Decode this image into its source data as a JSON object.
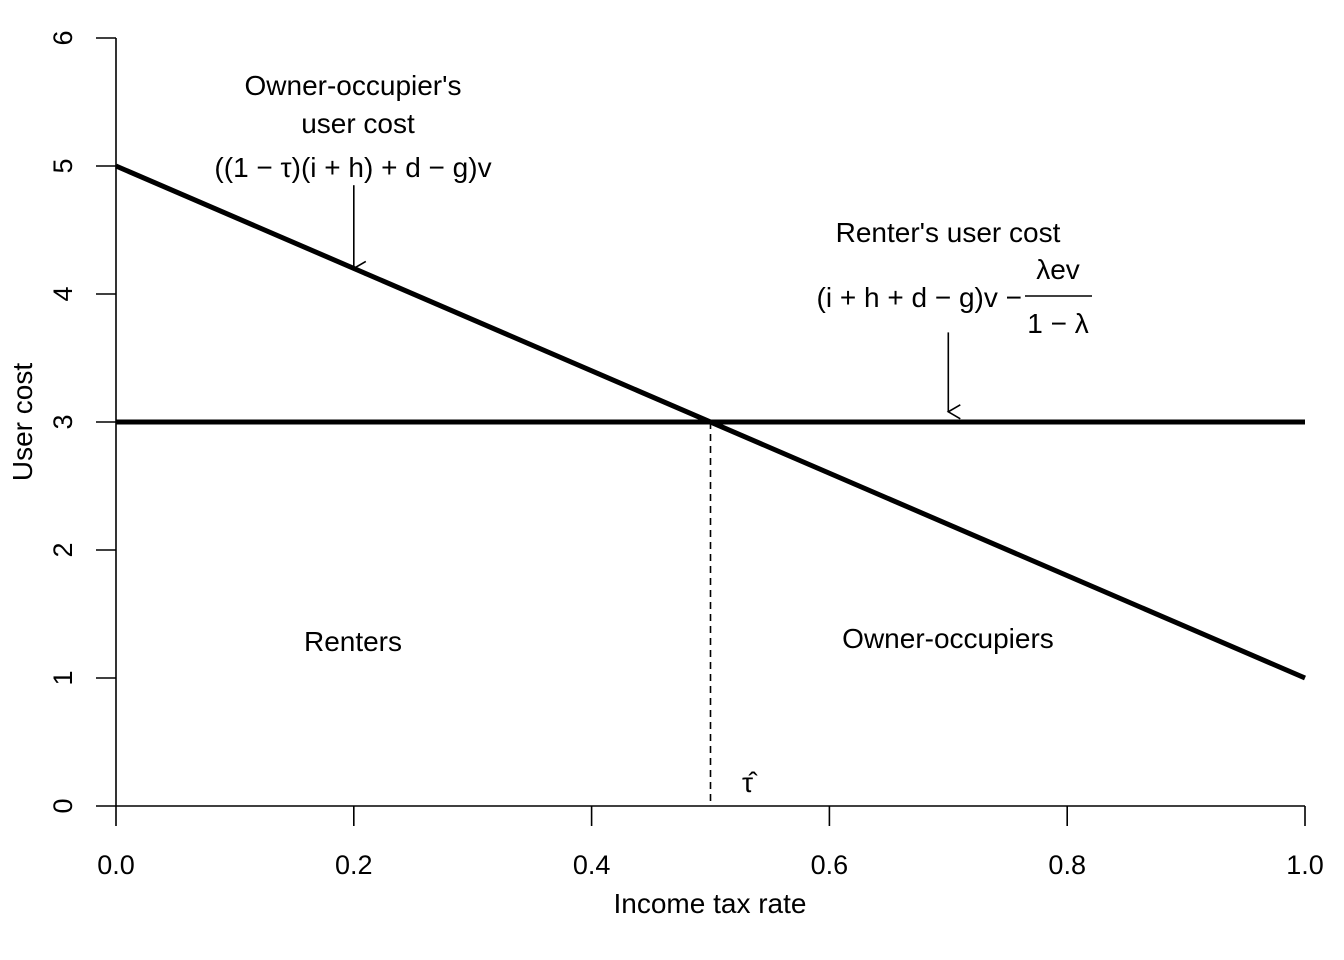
{
  "chart_data": {
    "type": "line",
    "title": "",
    "xlabel": "Income tax rate",
    "ylabel": "User cost",
    "xlim": [
      0,
      1
    ],
    "ylim": [
      0,
      6
    ],
    "xticks": [
      0.0,
      0.2,
      0.4,
      0.6,
      0.8,
      1.0
    ],
    "xtick_labels": [
      "0.0",
      "0.2",
      "0.4",
      "0.6",
      "0.8",
      "1.0"
    ],
    "yticks": [
      0,
      1,
      2,
      3,
      4,
      5,
      6
    ],
    "ytick_labels": [
      "0",
      "1",
      "2",
      "3",
      "4",
      "5",
      "6"
    ],
    "grid": false,
    "legend": "none",
    "series": [
      {
        "x": [
          0,
          1
        ],
        "y": [
          5,
          1
        ],
        "color": "#000000"
      },
      {
        "x": [
          0,
          1
        ],
        "y": [
          3,
          3
        ],
        "color": "#000000"
      }
    ],
    "intersection": {
      "x": 0.5,
      "y": 3,
      "label": "τ̂"
    },
    "annotations": {
      "owner_title_line1": "Owner-occupier's",
      "owner_title_line2": "user cost",
      "owner_formula": "((1 − τ)(i + h) + d − g)v",
      "renter_title": "Renter's user cost",
      "renter_formula_left": "(i + h + d − g)v −",
      "renter_formula_num": "λev",
      "renter_formula_den": "1 − λ",
      "region_left": "Renters",
      "region_right": "Owner-occupiers"
    },
    "arrows": [
      {
        "from": [
          0.2,
          4.85
        ],
        "to": [
          0.2,
          4.2
        ]
      },
      {
        "from": [
          0.7,
          3.7
        ],
        "to": [
          0.7,
          3.08
        ]
      }
    ]
  }
}
